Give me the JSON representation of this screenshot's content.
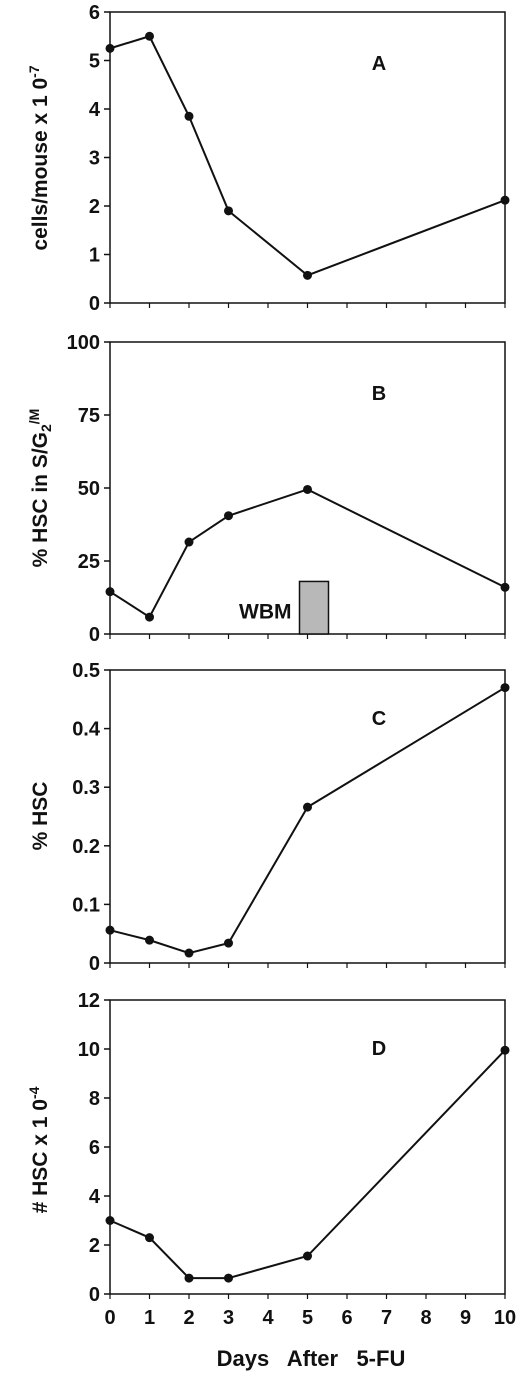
{
  "figure": {
    "x_axis_title": "Days   After   5-FU",
    "x_ticks": [
      "0",
      "1",
      "2",
      "3",
      "4",
      "5",
      "6",
      "7",
      "8",
      "9",
      "10"
    ]
  },
  "chart_data": [
    {
      "type": "line",
      "panel": "A",
      "ylabel_parts": [
        "cells/mouse  x  1 0",
        "-7"
      ],
      "ylim": [
        0,
        6
      ],
      "yticks": [
        "0",
        "1",
        "2",
        "3",
        "4",
        "5",
        "6"
      ],
      "x": [
        0,
        1,
        2,
        3,
        5,
        10
      ],
      "values": [
        5.25,
        5.5,
        3.85,
        1.9,
        0.57,
        2.12
      ]
    },
    {
      "type": "line",
      "panel": "B",
      "ylabel_parts": [
        "% HSC in S/G",
        "2",
        "/M"
      ],
      "ylim": [
        0,
        100
      ],
      "yticks": [
        "0",
        "25",
        "50",
        "75",
        "100"
      ],
      "x": [
        0,
        1,
        2,
        3,
        5,
        10
      ],
      "values": [
        14.5,
        5.8,
        31.5,
        40.5,
        49.5,
        16
      ],
      "annotation": {
        "label": "WBM",
        "value": 18,
        "at_x": 5
      }
    },
    {
      "type": "line",
      "panel": "C",
      "ylabel_parts": [
        "% HSC"
      ],
      "ylim": [
        0,
        0.5
      ],
      "yticks": [
        "0",
        "0.1",
        "0.2",
        "0.3",
        "0.4",
        "0.5"
      ],
      "x": [
        0,
        1,
        2,
        3,
        5,
        10
      ],
      "values": [
        0.056,
        0.039,
        0.017,
        0.034,
        0.266,
        0.47
      ]
    },
    {
      "type": "line",
      "panel": "D",
      "ylabel_parts": [
        "#  HSC  x  1 0",
        "-4"
      ],
      "ylim": [
        0,
        12
      ],
      "yticks": [
        "0",
        "2",
        "4",
        "6",
        "8",
        "10",
        "12"
      ],
      "x": [
        0,
        1,
        2,
        3,
        5,
        10
      ],
      "values": [
        3.0,
        2.3,
        0.65,
        0.65,
        1.55,
        9.95
      ]
    }
  ]
}
